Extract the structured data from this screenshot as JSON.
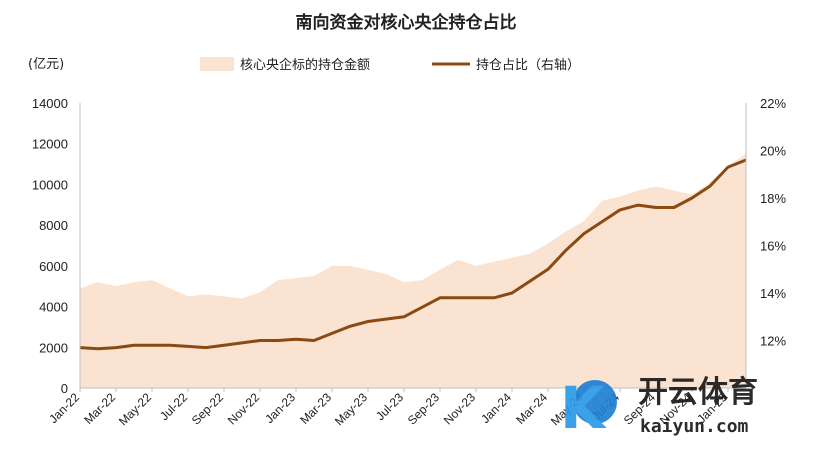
{
  "title": "南向资金对核心央企持仓占比",
  "y_unit_left": "(亿元)",
  "colors": {
    "area": "#fbe3d2",
    "line": "#8b4a12",
    "axis": "#bfbfbf",
    "text": "#222222"
  },
  "legend": {
    "position": "top-center",
    "area_label": "核心央企标的持仓金额",
    "line_label": "持仓占比（右轴）"
  },
  "watermark": {
    "logo_text": "K",
    "brand": "开云体育",
    "domain": "kaiyun.com"
  },
  "chart_data": {
    "type": "area+line",
    "x": [
      "2022-01",
      "2022-02",
      "2022-03",
      "2022-04",
      "2022-05",
      "2022-06",
      "2022-07",
      "2022-08",
      "2022-09",
      "2022-10",
      "2022-11",
      "2022-12",
      "2023-01",
      "2023-02",
      "2023-03",
      "2023-04",
      "2023-05",
      "2023-06",
      "2023-07",
      "2023-08",
      "2023-09",
      "2023-10",
      "2023-11",
      "2023-12",
      "2024-01",
      "2024-02",
      "2024-03",
      "2024-04",
      "2024-05",
      "2024-06",
      "2024-07",
      "2024-08",
      "2024-09",
      "2024-10",
      "2024-11",
      "2024-12",
      "2025-01",
      "2025-02"
    ],
    "x_tick_labels": [
      "Jan-22",
      "Mar-22",
      "May-22",
      "Jul-22",
      "Sep-22",
      "Nov-22",
      "Jan-23",
      "Mar-23",
      "May-23",
      "Jul-23",
      "Sep-23",
      "Nov-23",
      "Jan-24",
      "Mar-24",
      "May-24",
      "Jul-24",
      "Sep-24",
      "Nov-24",
      "Jan-25"
    ],
    "series": [
      {
        "name": "核心央企标的持仓金额",
        "axis": "left",
        "type": "area",
        "values": [
          4900,
          5200,
          5000,
          5200,
          5300,
          4900,
          4500,
          4600,
          4500,
          4400,
          4700,
          5300,
          5400,
          5500,
          6000,
          6000,
          5800,
          5600,
          5200,
          5300,
          5800,
          6300,
          6000,
          6200,
          6400,
          6600,
          7100,
          7700,
          8200,
          9200,
          9400,
          9700,
          9900,
          9700,
          9500,
          10100,
          10900,
          11500
        ]
      },
      {
        "name": "持仓占比（右轴）",
        "axis": "right",
        "type": "line",
        "values": [
          11.7,
          11.65,
          11.7,
          11.8,
          11.8,
          11.8,
          11.75,
          11.7,
          11.8,
          11.9,
          12.0,
          12.0,
          12.05,
          12.0,
          12.3,
          12.6,
          12.8,
          12.9,
          13.0,
          13.4,
          13.8,
          13.8,
          13.8,
          13.8,
          14.0,
          14.5,
          15.0,
          15.8,
          16.5,
          17.0,
          17.5,
          17.7,
          17.6,
          17.6,
          18.0,
          18.5,
          19.3,
          19.6
        ]
      }
    ],
    "y_left": {
      "min": 0,
      "max": 14000,
      "ticks": [
        "0",
        "2000",
        "4000",
        "6000",
        "8000",
        "10000",
        "12000",
        "14000"
      ]
    },
    "y_right": {
      "min": 10,
      "max": 22,
      "ticks": [
        "12%",
        "14%",
        "16%",
        "18%",
        "20%",
        "22%"
      ]
    },
    "grid": false
  }
}
